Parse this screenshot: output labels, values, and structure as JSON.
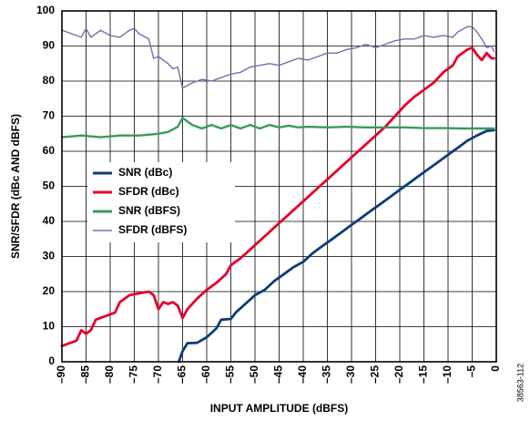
{
  "chart_data": {
    "type": "line",
    "xlabel": "INPUT AMPLITUDE (dBFS)",
    "ylabel": "SNR/SFDR (dBc AND dBFS)",
    "xlim": [
      -90,
      0
    ],
    "ylim": [
      0,
      100
    ],
    "x_ticks": [
      -90,
      -85,
      -80,
      -75,
      -70,
      -65,
      -60,
      -55,
      -50,
      -45,
      -40,
      -35,
      -30,
      -25,
      -20,
      -15,
      -10,
      -5,
      0
    ],
    "x_tick_labels": [
      "–90",
      "–85",
      "–80",
      "–75",
      "–70",
      "–65",
      "–60",
      "–55",
      "–50",
      "–45",
      "–40",
      "–35",
      "–30",
      "–25",
      "–20",
      "–15",
      "–10",
      "–5",
      "0"
    ],
    "y_ticks": [
      0,
      10,
      20,
      30,
      40,
      50,
      60,
      70,
      80,
      90,
      100
    ],
    "y_tick_labels": [
      "0",
      "10",
      "20",
      "30",
      "40",
      "50",
      "60",
      "70",
      "80",
      "90",
      "100"
    ],
    "grid": true,
    "legend_position": "center-left",
    "figure_id": "38563-112",
    "series": [
      {
        "name": "SNR (dBc)",
        "color": "#0a3d7a",
        "points": [
          [
            -65.8,
            0
          ],
          [
            -65,
            3
          ],
          [
            -64,
            5.3
          ],
          [
            -62,
            5.4
          ],
          [
            -60,
            7
          ],
          [
            -58,
            9.5
          ],
          [
            -57,
            12
          ],
          [
            -55,
            12.2
          ],
          [
            -54,
            14
          ],
          [
            -52,
            16.5
          ],
          [
            -50,
            19
          ],
          [
            -48,
            20.5
          ],
          [
            -46,
            23
          ],
          [
            -44,
            25
          ],
          [
            -42,
            27
          ],
          [
            -40,
            28.5
          ],
          [
            -38,
            31
          ],
          [
            -36,
            33
          ],
          [
            -34,
            35
          ],
          [
            -32,
            37
          ],
          [
            -30,
            39
          ],
          [
            -28,
            41
          ],
          [
            -26,
            43
          ],
          [
            -24,
            45
          ],
          [
            -22,
            47
          ],
          [
            -20,
            49
          ],
          [
            -18,
            51
          ],
          [
            -16,
            53
          ],
          [
            -14,
            55
          ],
          [
            -12,
            57
          ],
          [
            -10,
            59
          ],
          [
            -8,
            61
          ],
          [
            -6,
            63
          ],
          [
            -4,
            64.5
          ],
          [
            -2,
            65.8
          ],
          [
            -0.5,
            66
          ]
        ]
      },
      {
        "name": "SFDR (dBc)",
        "color": "#e4002b",
        "points": [
          [
            -90,
            4.5
          ],
          [
            -88,
            5.5
          ],
          [
            -87,
            6
          ],
          [
            -86,
            9
          ],
          [
            -85,
            8
          ],
          [
            -84,
            9
          ],
          [
            -83,
            12
          ],
          [
            -81,
            13
          ],
          [
            -79,
            14
          ],
          [
            -78,
            17
          ],
          [
            -76,
            19
          ],
          [
            -74,
            19.5
          ],
          [
            -72,
            20
          ],
          [
            -71,
            19
          ],
          [
            -70,
            15
          ],
          [
            -69,
            17
          ],
          [
            -68,
            16.5
          ],
          [
            -67,
            17
          ],
          [
            -66,
            16
          ],
          [
            -65,
            12.5
          ],
          [
            -64,
            15
          ],
          [
            -62,
            18
          ],
          [
            -60,
            20.5
          ],
          [
            -58,
            22.5
          ],
          [
            -56,
            25
          ],
          [
            -55,
            27.5
          ],
          [
            -53,
            29.5
          ],
          [
            -51,
            32
          ],
          [
            -49,
            34.5
          ],
          [
            -47,
            37
          ],
          [
            -45,
            39.5
          ],
          [
            -43,
            42
          ],
          [
            -41,
            44.5
          ],
          [
            -39,
            47
          ],
          [
            -37,
            49.5
          ],
          [
            -35,
            52
          ],
          [
            -33,
            54.5
          ],
          [
            -31,
            57
          ],
          [
            -29,
            59.5
          ],
          [
            -27,
            62
          ],
          [
            -25,
            64.5
          ],
          [
            -23,
            67
          ],
          [
            -21,
            70
          ],
          [
            -19,
            73
          ],
          [
            -17,
            75.5
          ],
          [
            -15,
            77.5
          ],
          [
            -13,
            79.5
          ],
          [
            -11,
            82.5
          ],
          [
            -9,
            84.5
          ],
          [
            -8,
            87
          ],
          [
            -6,
            89
          ],
          [
            -5,
            89.5
          ],
          [
            -4,
            87.5
          ],
          [
            -3,
            86
          ],
          [
            -2,
            88
          ],
          [
            -1,
            86.5
          ],
          [
            -0.5,
            86.5
          ]
        ]
      },
      {
        "name": "SNR (dBFS)",
        "color": "#3a9a5a",
        "points": [
          [
            -90,
            64
          ],
          [
            -86,
            64.5
          ],
          [
            -82,
            64
          ],
          [
            -78,
            64.5
          ],
          [
            -74,
            64.5
          ],
          [
            -70,
            65
          ],
          [
            -68,
            65.5
          ],
          [
            -66,
            67
          ],
          [
            -65,
            69.5
          ],
          [
            -64,
            68.5
          ],
          [
            -63,
            67.5
          ],
          [
            -61,
            66.5
          ],
          [
            -59,
            67.5
          ],
          [
            -57,
            66.5
          ],
          [
            -55,
            67.5
          ],
          [
            -53,
            66.5
          ],
          [
            -51,
            67.5
          ],
          [
            -49,
            66.5
          ],
          [
            -47,
            67.5
          ],
          [
            -45,
            66.8
          ],
          [
            -43,
            67.3
          ],
          [
            -41,
            66.8
          ],
          [
            -39,
            67
          ],
          [
            -35,
            66.8
          ],
          [
            -31,
            67
          ],
          [
            -27,
            66.8
          ],
          [
            -23,
            66.8
          ],
          [
            -19,
            66.8
          ],
          [
            -15,
            66.6
          ],
          [
            -11,
            66.6
          ],
          [
            -7,
            66.5
          ],
          [
            -3,
            66.5
          ],
          [
            -0.5,
            66.5
          ]
        ]
      },
      {
        "name": "SFDR (dBFS)",
        "color": "#7b68b0",
        "points": [
          [
            -90,
            94.5
          ],
          [
            -88,
            93.5
          ],
          [
            -86,
            92.5
          ],
          [
            -85,
            95
          ],
          [
            -84,
            92.5
          ],
          [
            -82,
            94.5
          ],
          [
            -80,
            93
          ],
          [
            -78,
            92.5
          ],
          [
            -76,
            94.5
          ],
          [
            -75,
            95
          ],
          [
            -74,
            93.5
          ],
          [
            -72,
            92
          ],
          [
            -71,
            86.5
          ],
          [
            -70,
            87
          ],
          [
            -68,
            85
          ],
          [
            -67,
            83.5
          ],
          [
            -66,
            84
          ],
          [
            -65,
            78
          ],
          [
            -63,
            79.5
          ],
          [
            -61,
            80.5
          ],
          [
            -59,
            80
          ],
          [
            -57,
            81
          ],
          [
            -55,
            82
          ],
          [
            -53,
            82.5
          ],
          [
            -51,
            84
          ],
          [
            -49,
            84.5
          ],
          [
            -47,
            85
          ],
          [
            -45,
            84.5
          ],
          [
            -43,
            85.5
          ],
          [
            -41,
            86.5
          ],
          [
            -39,
            86
          ],
          [
            -37,
            87
          ],
          [
            -35,
            88
          ],
          [
            -33,
            88
          ],
          [
            -31,
            89
          ],
          [
            -29,
            89.5
          ],
          [
            -27,
            90.5
          ],
          [
            -25,
            89.5
          ],
          [
            -23,
            90.5
          ],
          [
            -21,
            91.5
          ],
          [
            -19,
            92
          ],
          [
            -17,
            92
          ],
          [
            -15,
            93
          ],
          [
            -13,
            92.5
          ],
          [
            -11,
            93
          ],
          [
            -9,
            92.5
          ],
          [
            -8,
            94
          ],
          [
            -6,
            95.5
          ],
          [
            -5,
            95.5
          ],
          [
            -4,
            94
          ],
          [
            -3,
            92
          ],
          [
            -2,
            89.5
          ],
          [
            -1,
            90
          ],
          [
            -0.5,
            88.5
          ]
        ]
      }
    ]
  }
}
